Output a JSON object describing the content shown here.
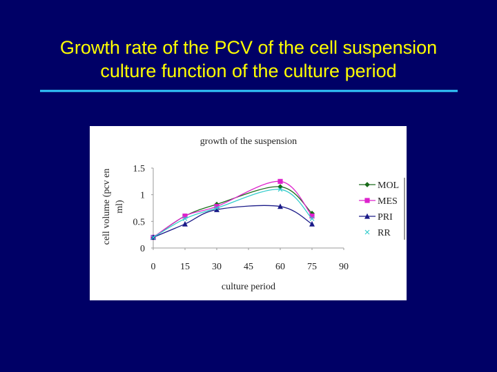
{
  "slide_title": [
    "Growth rate of the PCV of the cell suspension",
    "culture function of the culture period"
  ],
  "chart_data": {
    "type": "line",
    "title": "growth of the suspension",
    "y_label": [
      "cell volume (pcv en",
      "ml)"
    ],
    "x_label": "culture period",
    "x": [
      0,
      15,
      30,
      60,
      75
    ],
    "xlim": [
      0,
      90
    ],
    "xticks": [
      0,
      15,
      30,
      45,
      60,
      75,
      90
    ],
    "ylim": [
      0,
      1.5
    ],
    "yticks": [
      0,
      0.5,
      1,
      1.5
    ],
    "series": [
      {
        "name": "MOL",
        "color": "#1a6b1a",
        "marker": "diamond",
        "values": [
          0.2,
          0.6,
          0.82,
          1.15,
          0.65
        ]
      },
      {
        "name": "MES",
        "color": "#dd22cc",
        "marker": "square",
        "values": [
          0.2,
          0.6,
          0.78,
          1.25,
          0.6
        ]
      },
      {
        "name": "PRI",
        "color": "#1a1a88",
        "marker": "triangle",
        "values": [
          0.2,
          0.45,
          0.72,
          0.78,
          0.45
        ]
      },
      {
        "name": "RR",
        "color": "#33cccc",
        "marker": "x",
        "values": [
          0.2,
          0.55,
          0.75,
          1.1,
          0.55
        ]
      }
    ]
  }
}
